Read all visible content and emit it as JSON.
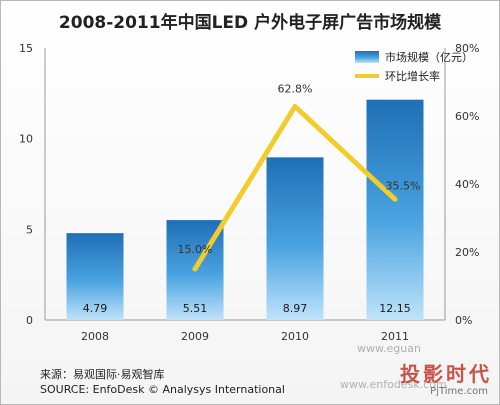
{
  "chart_data": {
    "type": "bar",
    "title": "2008-2011年中国LED 户外电子屏广告市场规模",
    "categories": [
      "2008",
      "2009",
      "2010",
      "2011"
    ],
    "series": [
      {
        "name": "市场规模（亿元）",
        "type": "bar",
        "axis": "left",
        "values": [
          4.79,
          5.51,
          8.97,
          12.15
        ],
        "color": "#2e86c8"
      },
      {
        "name": "环比增长率",
        "type": "line",
        "axis": "right",
        "values": [
          null,
          15.0,
          62.8,
          35.5
        ],
        "color": "#f2cc2a"
      }
    ],
    "bar_labels": [
      "4.79",
      "5.51",
      "8.97",
      "12.15"
    ],
    "line_labels": [
      "",
      "15.0%",
      "62.8%",
      "35.5%"
    ],
    "y_left": {
      "ticks": [
        "0",
        "5",
        "10",
        "15"
      ],
      "ylim": [
        0,
        15
      ]
    },
    "y_right": {
      "ticks": [
        "0%",
        "20%",
        "40%",
        "60%",
        "80%"
      ],
      "ylim": [
        0,
        80
      ]
    },
    "legend_position": "top-right",
    "grid": false
  },
  "footer": {
    "source_cn": "来源：易观国际·易观智库",
    "source_en": "SOURCE: EnfoDesk © Analysys International"
  },
  "watermarks": {
    "domain1": "www.eguan",
    "domain2": "www.enfodesk.com",
    "logo_text": "投影时代",
    "logo_sub": "PjTime.com"
  }
}
